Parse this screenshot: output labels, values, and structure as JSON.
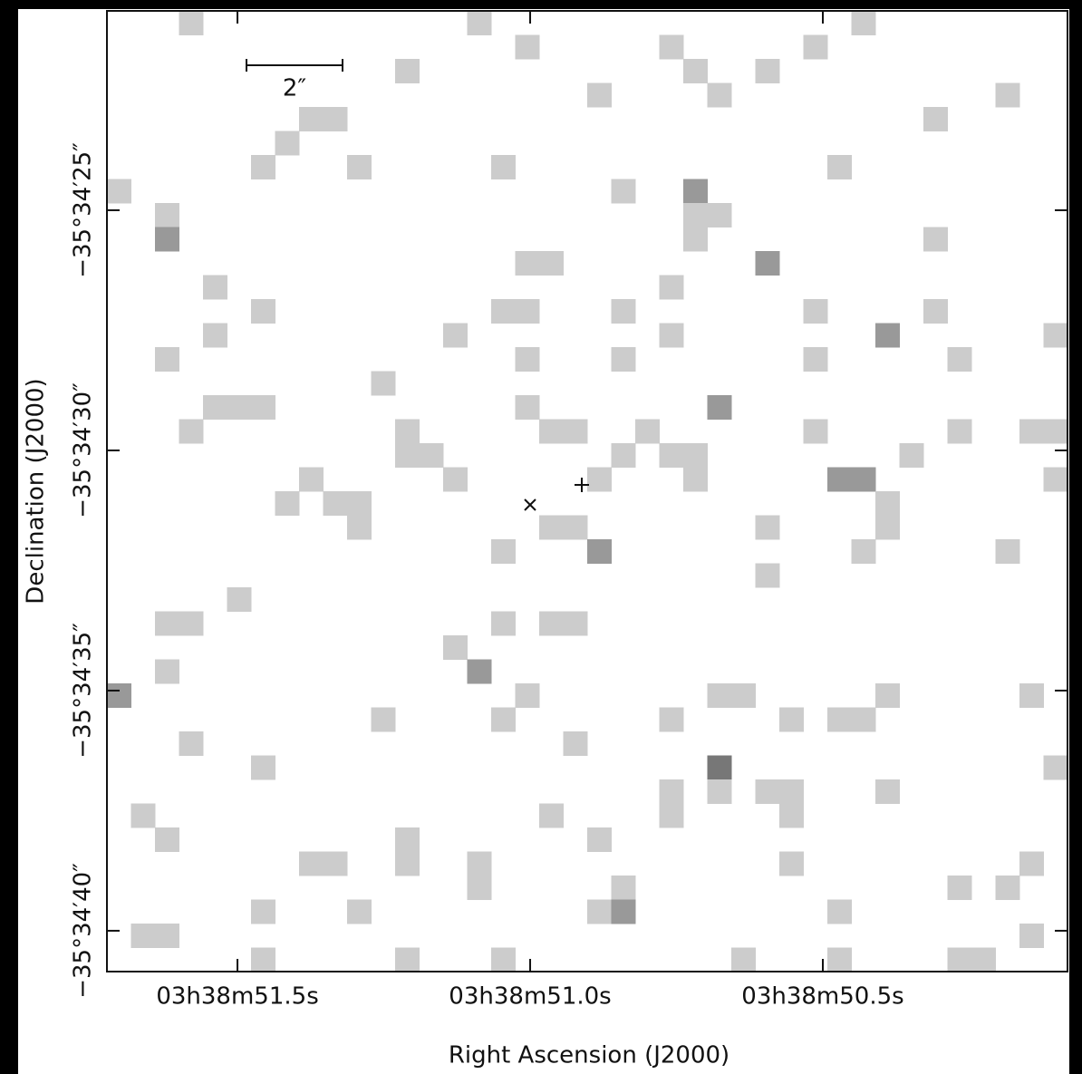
{
  "chart_data": {
    "type": "image",
    "xlabel": "Right Ascension (J2000)",
    "ylabel": "Declination (J2000)",
    "xlim": [
      51.723,
      50.082
    ],
    "xticks": [
      {
        "value": 51.5,
        "label": "03h38m51.5s"
      },
      {
        "value": 51.0,
        "label": "03h38m51.0s"
      },
      {
        "value": 50.5,
        "label": "03h38m50.5s"
      }
    ],
    "ylim": [
      20.85,
      40.85
    ],
    "yticks": [
      {
        "value": 25,
        "label": "−35°34′25″"
      },
      {
        "value": 30,
        "label": "−35°34′30″"
      },
      {
        "value": 35,
        "label": "−35°34′35″"
      },
      {
        "value": 40,
        "label": "−35°34′40″"
      }
    ],
    "scale_bar": {
      "label": "2″",
      "length": 2
    },
    "image_size": [
      40,
      40
    ],
    "colors": {
      "1": "#cccccc",
      "2": "#999999",
      "3": "#777777"
    },
    "pixels": [
      [
        3,
        0,
        1
      ],
      [
        15,
        0,
        1
      ],
      [
        31,
        0,
        1
      ],
      [
        17,
        1,
        1
      ],
      [
        23,
        1,
        1
      ],
      [
        29,
        1,
        1
      ],
      [
        12,
        2,
        1
      ],
      [
        24,
        2,
        1
      ],
      [
        27,
        2,
        1
      ],
      [
        20,
        3,
        1
      ],
      [
        25,
        3,
        1
      ],
      [
        37,
        3,
        1
      ],
      [
        8,
        4,
        1
      ],
      [
        9,
        4,
        1
      ],
      [
        34,
        4,
        1
      ],
      [
        7,
        5,
        1
      ],
      [
        6,
        6,
        1
      ],
      [
        10,
        6,
        1
      ],
      [
        16,
        6,
        1
      ],
      [
        30,
        6,
        1
      ],
      [
        0,
        7,
        1
      ],
      [
        21,
        7,
        1
      ],
      [
        24,
        7,
        2
      ],
      [
        2,
        8,
        1
      ],
      [
        24,
        8,
        1
      ],
      [
        25,
        8,
        1
      ],
      [
        2,
        9,
        2
      ],
      [
        24,
        9,
        1
      ],
      [
        34,
        9,
        1
      ],
      [
        17,
        10,
        1
      ],
      [
        18,
        10,
        1
      ],
      [
        27,
        10,
        2
      ],
      [
        4,
        11,
        1
      ],
      [
        23,
        11,
        1
      ],
      [
        6,
        12,
        1
      ],
      [
        16,
        12,
        1
      ],
      [
        17,
        12,
        1
      ],
      [
        21,
        12,
        1
      ],
      [
        29,
        12,
        1
      ],
      [
        34,
        12,
        1
      ],
      [
        4,
        13,
        1
      ],
      [
        14,
        13,
        1
      ],
      [
        23,
        13,
        1
      ],
      [
        32,
        13,
        2
      ],
      [
        39,
        13,
        1
      ],
      [
        2,
        14,
        1
      ],
      [
        17,
        14,
        1
      ],
      [
        21,
        14,
        1
      ],
      [
        29,
        14,
        1
      ],
      [
        35,
        14,
        1
      ],
      [
        11,
        15,
        1
      ],
      [
        4,
        16,
        1
      ],
      [
        5,
        16,
        1
      ],
      [
        6,
        16,
        1
      ],
      [
        17,
        16,
        1
      ],
      [
        25,
        16,
        2
      ],
      [
        3,
        17,
        1
      ],
      [
        12,
        17,
        1
      ],
      [
        18,
        17,
        1
      ],
      [
        19,
        17,
        1
      ],
      [
        22,
        17,
        1
      ],
      [
        29,
        17,
        1
      ],
      [
        35,
        17,
        1
      ],
      [
        38,
        17,
        1
      ],
      [
        39,
        17,
        1
      ],
      [
        12,
        18,
        1
      ],
      [
        13,
        18,
        1
      ],
      [
        21,
        18,
        1
      ],
      [
        23,
        18,
        1
      ],
      [
        24,
        18,
        1
      ],
      [
        33,
        18,
        1
      ],
      [
        8,
        19,
        1
      ],
      [
        14,
        19,
        1
      ],
      [
        20,
        19,
        1
      ],
      [
        24,
        19,
        1
      ],
      [
        30,
        19,
        2
      ],
      [
        31,
        19,
        2
      ],
      [
        39,
        19,
        1
      ],
      [
        7,
        20,
        1
      ],
      [
        9,
        20,
        1
      ],
      [
        10,
        20,
        1
      ],
      [
        32,
        20,
        1
      ],
      [
        10,
        21,
        1
      ],
      [
        18,
        21,
        1
      ],
      [
        19,
        21,
        1
      ],
      [
        27,
        21,
        1
      ],
      [
        32,
        21,
        1
      ],
      [
        16,
        22,
        1
      ],
      [
        20,
        22,
        2
      ],
      [
        31,
        22,
        1
      ],
      [
        37,
        22,
        1
      ],
      [
        27,
        23,
        1
      ],
      [
        5,
        24,
        1
      ],
      [
        2,
        25,
        1
      ],
      [
        3,
        25,
        1
      ],
      [
        16,
        25,
        1
      ],
      [
        18,
        25,
        1
      ],
      [
        19,
        25,
        1
      ],
      [
        14,
        26,
        1
      ],
      [
        2,
        27,
        1
      ],
      [
        15,
        27,
        2
      ],
      [
        0,
        28,
        2
      ],
      [
        17,
        28,
        1
      ],
      [
        25,
        28,
        1
      ],
      [
        26,
        28,
        1
      ],
      [
        32,
        28,
        1
      ],
      [
        38,
        28,
        1
      ],
      [
        11,
        29,
        1
      ],
      [
        16,
        29,
        1
      ],
      [
        23,
        29,
        1
      ],
      [
        28,
        29,
        1
      ],
      [
        30,
        29,
        1
      ],
      [
        31,
        29,
        1
      ],
      [
        3,
        30,
        1
      ],
      [
        19,
        30,
        1
      ],
      [
        6,
        31,
        1
      ],
      [
        25,
        31,
        3
      ],
      [
        39,
        31,
        1
      ],
      [
        23,
        32,
        1
      ],
      [
        25,
        32,
        1
      ],
      [
        27,
        32,
        1
      ],
      [
        28,
        32,
        1
      ],
      [
        32,
        32,
        1
      ],
      [
        1,
        33,
        1
      ],
      [
        18,
        33,
        1
      ],
      [
        23,
        33,
        1
      ],
      [
        28,
        33,
        1
      ],
      [
        2,
        34,
        1
      ],
      [
        12,
        34,
        1
      ],
      [
        20,
        34,
        1
      ],
      [
        8,
        35,
        1
      ],
      [
        9,
        35,
        1
      ],
      [
        12,
        35,
        1
      ],
      [
        15,
        35,
        1
      ],
      [
        28,
        35,
        1
      ],
      [
        38,
        35,
        1
      ],
      [
        15,
        36,
        1
      ],
      [
        21,
        36,
        1
      ],
      [
        35,
        36,
        1
      ],
      [
        37,
        36,
        1
      ],
      [
        6,
        37,
        1
      ],
      [
        10,
        37,
        1
      ],
      [
        20,
        37,
        1
      ],
      [
        21,
        37,
        2
      ],
      [
        30,
        37,
        1
      ],
      [
        1,
        38,
        1
      ],
      [
        2,
        38,
        1
      ],
      [
        38,
        38,
        1
      ],
      [
        6,
        39,
        1
      ],
      [
        12,
        39,
        1
      ],
      [
        16,
        39,
        1
      ],
      [
        26,
        39,
        1
      ],
      [
        30,
        39,
        1
      ],
      [
        35,
        39,
        1
      ],
      [
        36,
        39,
        1
      ]
    ]
  }
}
